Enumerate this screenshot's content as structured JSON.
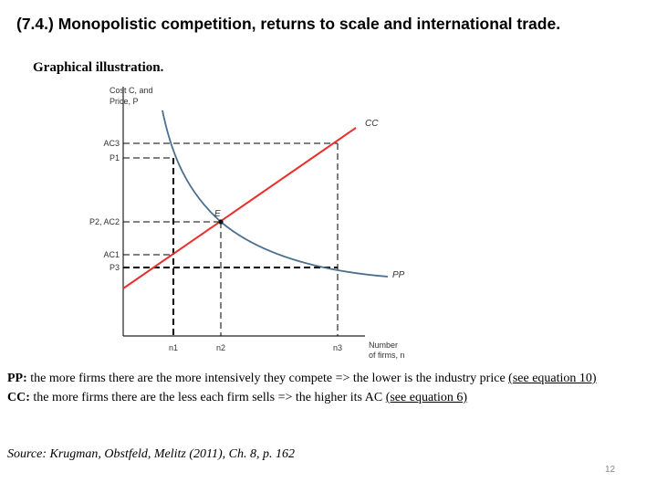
{
  "title": "(7.4.) Monopolistic competition, returns to scale and international trade.",
  "subtitle": "Graphical illustration.",
  "figure": {
    "y_axis_label": [
      "Cost C, and",
      "Price, P"
    ],
    "x_axis_label": [
      "Number",
      "of firms, n"
    ],
    "y_ticks": [
      "AC3",
      "P1",
      "P2, AC2",
      "AC1",
      "P3"
    ],
    "x_ticks": [
      "n1",
      "n2",
      "n3"
    ],
    "curve_labels": {
      "cc": "CC",
      "pp": "PP",
      "equilibrium": "E"
    },
    "colors": {
      "cc": "#e8312d",
      "pp": "#4a6f8f",
      "guides": "#000000",
      "p3_line": "#000000"
    }
  },
  "description": {
    "pp_label": "PP:",
    "pp_text": " the more firms there are the more intensively they compete => the lower is the industry price ",
    "pp_link": "(see equation 10)",
    "cc_label": "CC:",
    "cc_text": " the more firms there are the less each firm sells => the higher its AC ",
    "cc_link": "(see equation 6)"
  },
  "source": "Source: Krugman, Obstfeld, Melitz (2011), Ch. 8, p. 162",
  "page_number": "12"
}
